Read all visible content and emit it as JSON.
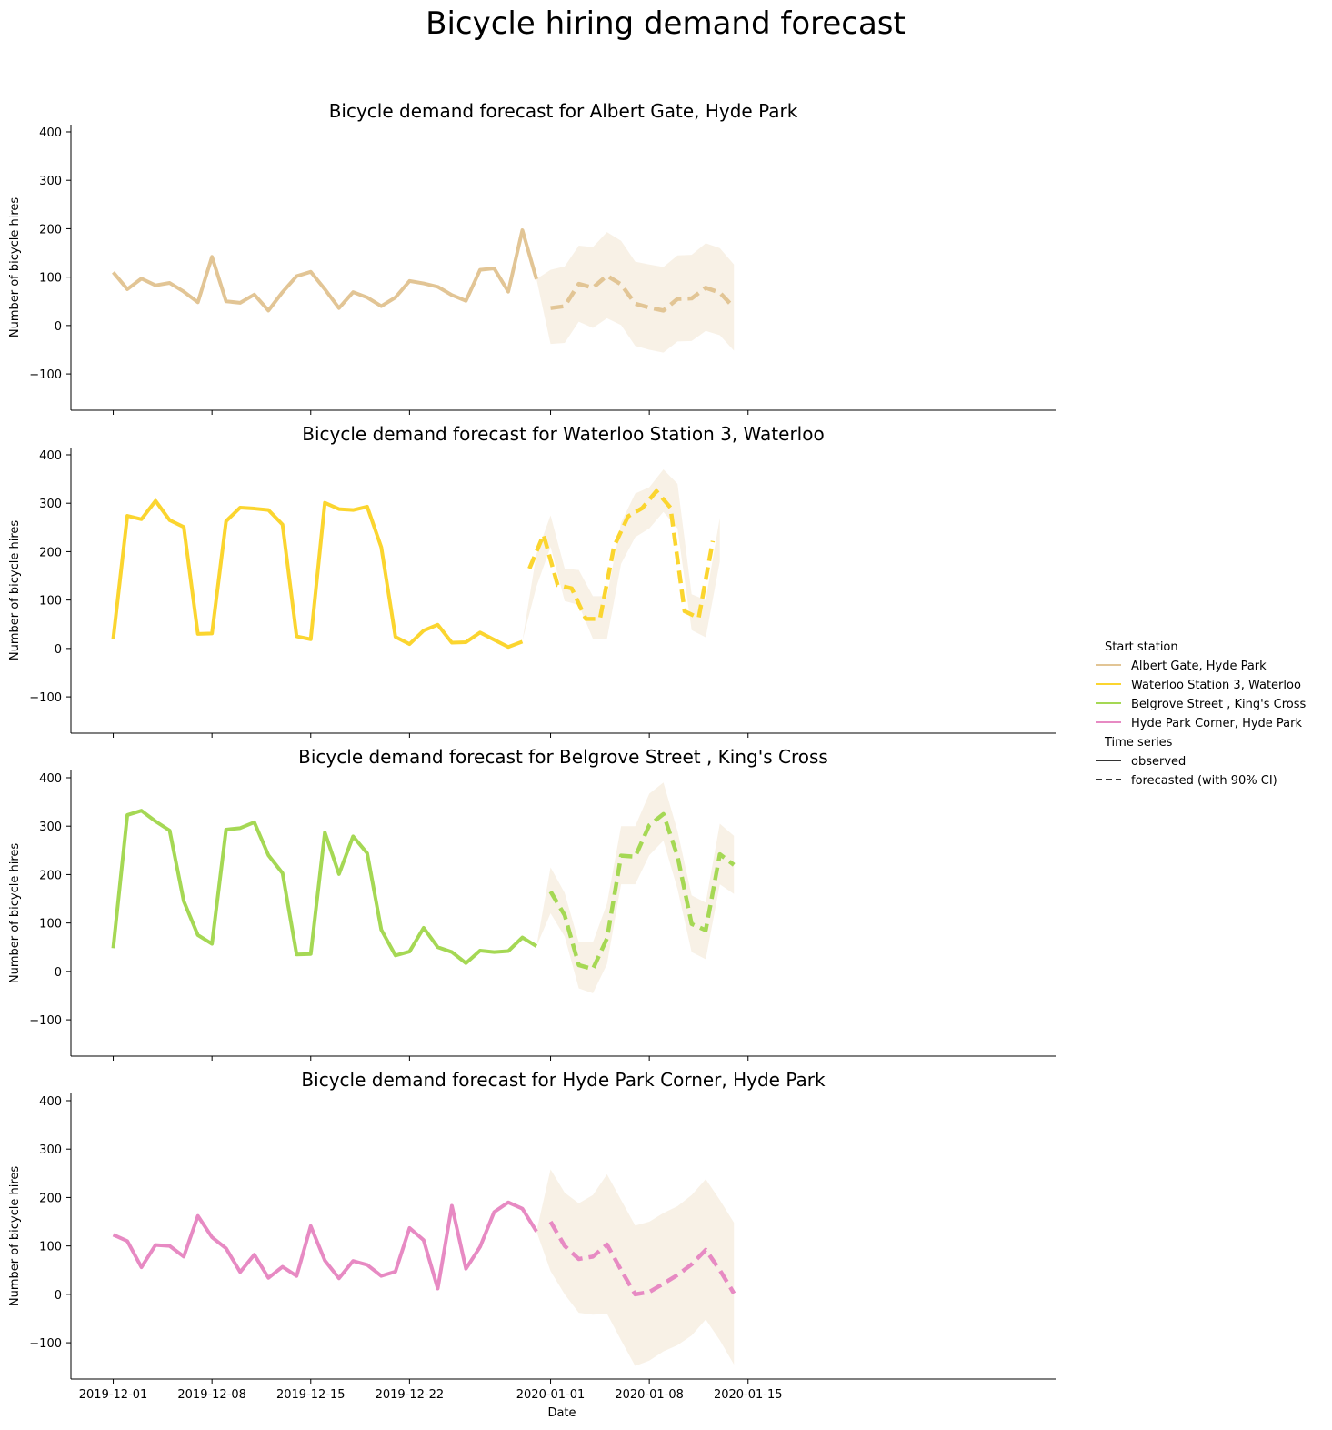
{
  "chart_data": {
    "type": "line",
    "title": "Bicycle hiring demand forecast",
    "xlabel": "Date",
    "ylabel": "Number of bicycle hires",
    "ylim": [
      -175,
      415
    ],
    "xlim": [
      -3,
      66.8
    ],
    "y_ticks": [
      400,
      300,
      200,
      100,
      0,
      -100
    ],
    "y_tick_labels": [
      "400",
      "300",
      "200",
      "100",
      "0",
      "−100"
    ],
    "x_ticks": [
      {
        "day": 0,
        "label": "2019-12-01"
      },
      {
        "day": 7,
        "label": "2019-12-08"
      },
      {
        "day": 14,
        "label": "2019-12-15"
      },
      {
        "day": 21,
        "label": "2019-12-22"
      },
      {
        "day": 31,
        "label": "2020-01-01"
      },
      {
        "day": 38,
        "label": "2020-01-08"
      },
      {
        "day": 45,
        "label": "2020-01-15"
      }
    ],
    "band_color": "#f8f1e6",
    "legend": {
      "station_title": "Start station",
      "series_title": "Time series",
      "observed_label": "observed",
      "forecast_label": "forecasted (with 90% CI)",
      "placement": "right"
    },
    "panels": [
      {
        "title": "Bicycle demand forecast for Albert Gate, Hyde Park",
        "station": "Albert Gate, Hyde Park",
        "color": "#e2c595",
        "observed_start_day": 0,
        "observed": [
          110,
          75,
          97,
          83,
          88,
          70,
          48,
          142,
          50,
          47,
          64,
          31,
          69,
          102,
          111,
          75,
          36,
          69,
          58,
          40,
          58,
          92,
          87,
          80,
          63,
          51,
          115,
          118,
          70,
          197,
          96
        ],
        "forecast_start_day": 31,
        "forecast": [
          36,
          40,
          86,
          78,
          103,
          85,
          45,
          37,
          31,
          55,
          56,
          78,
          68,
          37
        ],
        "ci_start_day": 30,
        "ci_lower": [
          96,
          -38,
          -36,
          8,
          -5,
          15,
          1,
          -42,
          -50,
          -56,
          -33,
          -32,
          -11,
          -20,
          -52
        ],
        "ci_upper": [
          96,
          115,
          122,
          165,
          162,
          193,
          175,
          132,
          126,
          121,
          145,
          146,
          170,
          160,
          126
        ]
      },
      {
        "title": "Bicycle demand forecast for Waterloo Station 3, Waterloo",
        "station": "Waterloo Station 3, Waterloo",
        "color": "#fbd52f",
        "observed_start_day": 0,
        "observed": [
          20,
          274,
          267,
          305,
          265,
          251,
          30,
          31,
          263,
          291,
          289,
          286,
          256,
          25,
          19,
          301,
          288,
          286,
          293,
          209,
          24,
          9,
          37,
          49,
          12,
          13,
          33,
          18,
          3,
          14
        ],
        "forecast_start_day": 29.5,
        "forecast": [
          165,
          235,
          131,
          124,
          61,
          61,
          211,
          273,
          290,
          325,
          291,
          77,
          63,
          222
        ],
        "ci_start_day": 29,
        "ci_lower": [
          16,
          128,
          210,
          98,
          90,
          20,
          20,
          175,
          230,
          248,
          282,
          248,
          38,
          23,
          180
        ],
        "ci_upper": [
          16,
          195,
          275,
          165,
          162,
          108,
          108,
          260,
          320,
          333,
          370,
          340,
          112,
          100,
          270
        ]
      },
      {
        "title": "Bicycle demand forecast for Belgrove Street , King's Cross",
        "station": "Belgrove Street , King's Cross",
        "color": "#a5d854",
        "observed_start_day": 0,
        "observed": [
          48,
          323,
          332,
          310,
          291,
          145,
          75,
          57,
          293,
          296,
          308,
          240,
          203,
          35,
          36,
          287,
          201,
          279,
          244,
          86,
          33,
          41,
          90,
          50,
          40,
          17,
          43,
          40,
          42,
          70,
          52
        ],
        "forecast_start_day": 31,
        "forecast": [
          165,
          116,
          13,
          5,
          68,
          239,
          237,
          302,
          325,
          238,
          98,
          85,
          242,
          220
        ],
        "ci_start_day": 30,
        "ci_lower": [
          52,
          120,
          72,
          -35,
          -45,
          15,
          180,
          180,
          240,
          270,
          170,
          40,
          25,
          180,
          160
        ],
        "ci_upper": [
          52,
          215,
          162,
          60,
          60,
          140,
          300,
          300,
          367,
          390,
          290,
          157,
          142,
          305,
          280
        ]
      },
      {
        "title": "Bicycle demand forecast for Hyde Park Corner, Hyde Park",
        "station": "Hyde Park Corner, Hyde Park",
        "color": "#e78ac3",
        "observed_start_day": 0,
        "observed": [
          123,
          110,
          56,
          102,
          100,
          78,
          162,
          118,
          95,
          46,
          82,
          34,
          57,
          38,
          141,
          70,
          33,
          69,
          61,
          38,
          47,
          137,
          112,
          12,
          183,
          53,
          98,
          170,
          190,
          177,
          130
        ],
        "forecast_start_day": 31,
        "forecast": [
          150,
          100,
          73,
          78,
          103,
          50,
          0,
          5,
          22,
          40,
          62,
          92,
          50,
          2
        ],
        "ci_start_day": 30,
        "ci_lower": [
          130,
          48,
          0,
          -38,
          -42,
          -40,
          -95,
          -148,
          -137,
          -118,
          -105,
          -85,
          -52,
          -95,
          -145
        ],
        "ci_upper": [
          130,
          258,
          210,
          188,
          205,
          248,
          195,
          142,
          150,
          168,
          182,
          205,
          238,
          195,
          148
        ]
      }
    ]
  }
}
